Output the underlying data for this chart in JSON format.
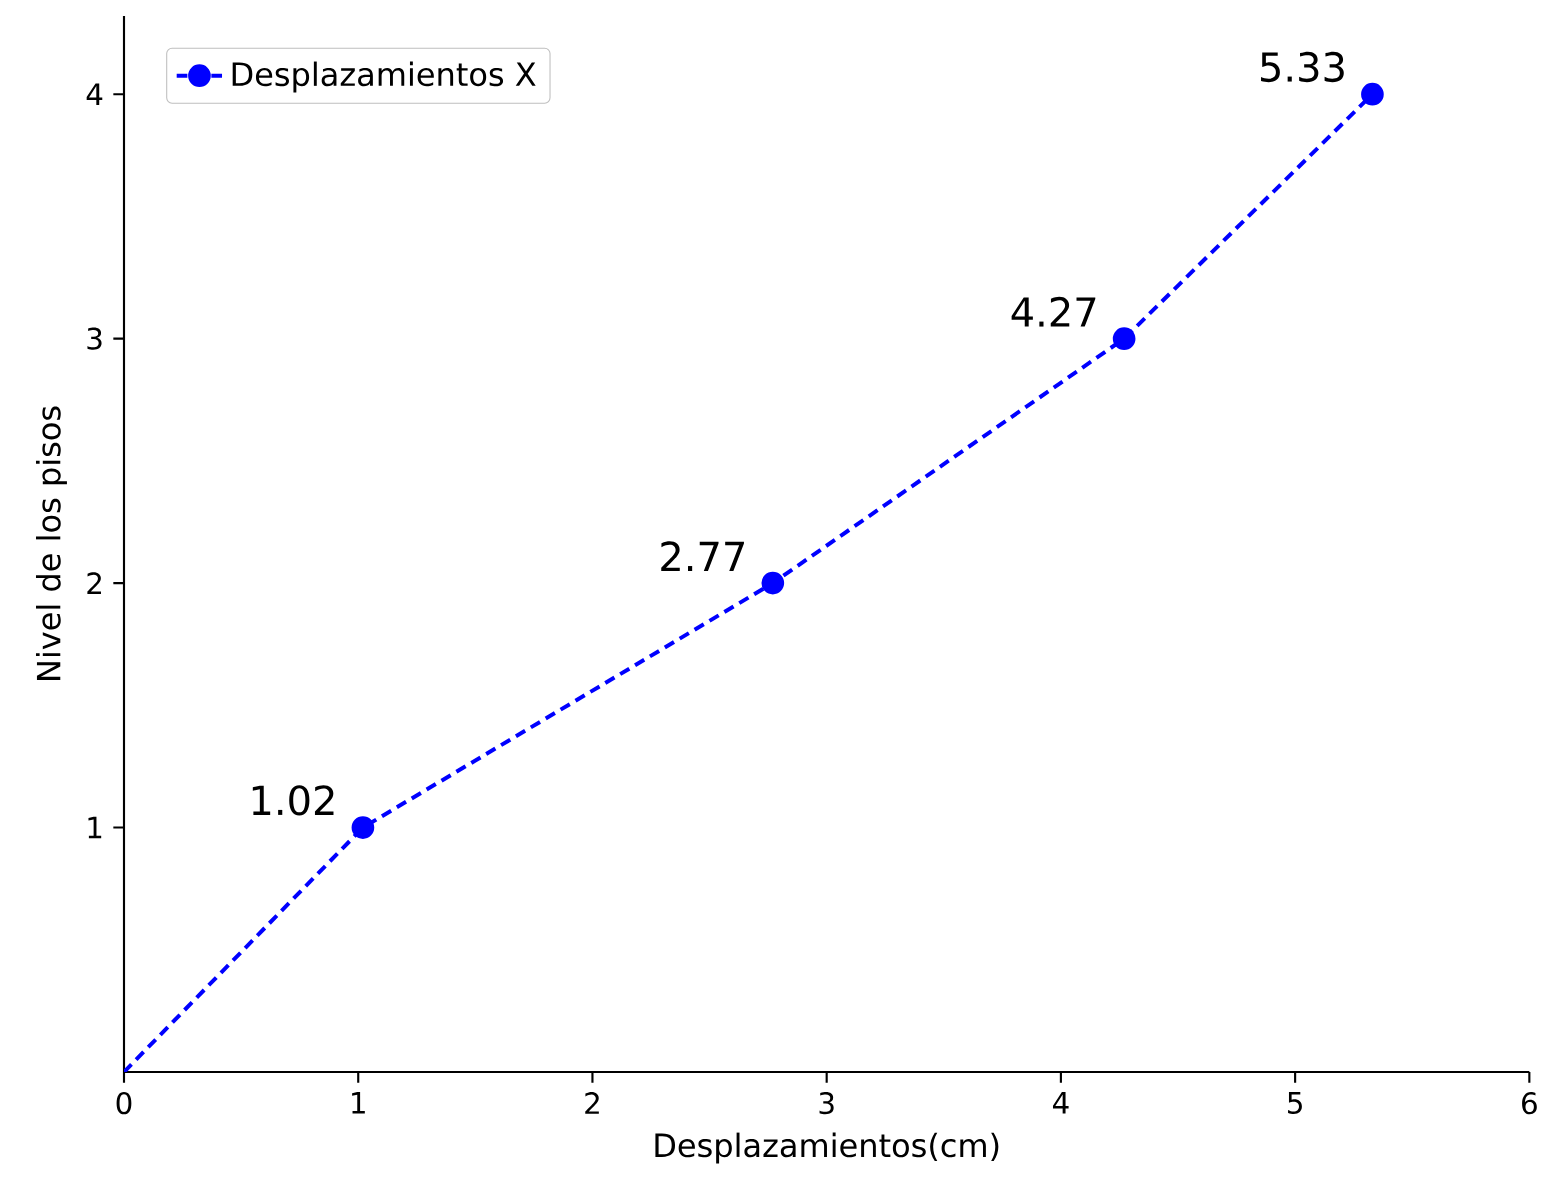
{
  "chart_data": {
    "type": "line",
    "xlabel": "Desplazamientos(cm)",
    "ylabel": "Nivel de los pisos",
    "x": [
      0,
      1.02,
      2.77,
      4.27,
      5.33
    ],
    "series": [
      {
        "name": "Desplazamientos X",
        "color": "#0000ff",
        "values": [
          0,
          1,
          2,
          3,
          4
        ]
      }
    ],
    "xlim": [
      0,
      6
    ],
    "ylim": [
      0,
      4.32
    ],
    "xticks": [
      0,
      1,
      2,
      3,
      4,
      5,
      6
    ],
    "yticks": [
      1,
      2,
      3,
      4
    ],
    "marker": "circle",
    "line_style": "dashed",
    "legend": "top left",
    "annotations": [
      {
        "text": "1.02",
        "x": 1.02,
        "y": 1
      },
      {
        "text": "2.77",
        "x": 2.77,
        "y": 2
      },
      {
        "text": "4.27",
        "x": 4.27,
        "y": 3
      },
      {
        "text": "5.33",
        "x": 5.33,
        "y": 4
      }
    ]
  }
}
